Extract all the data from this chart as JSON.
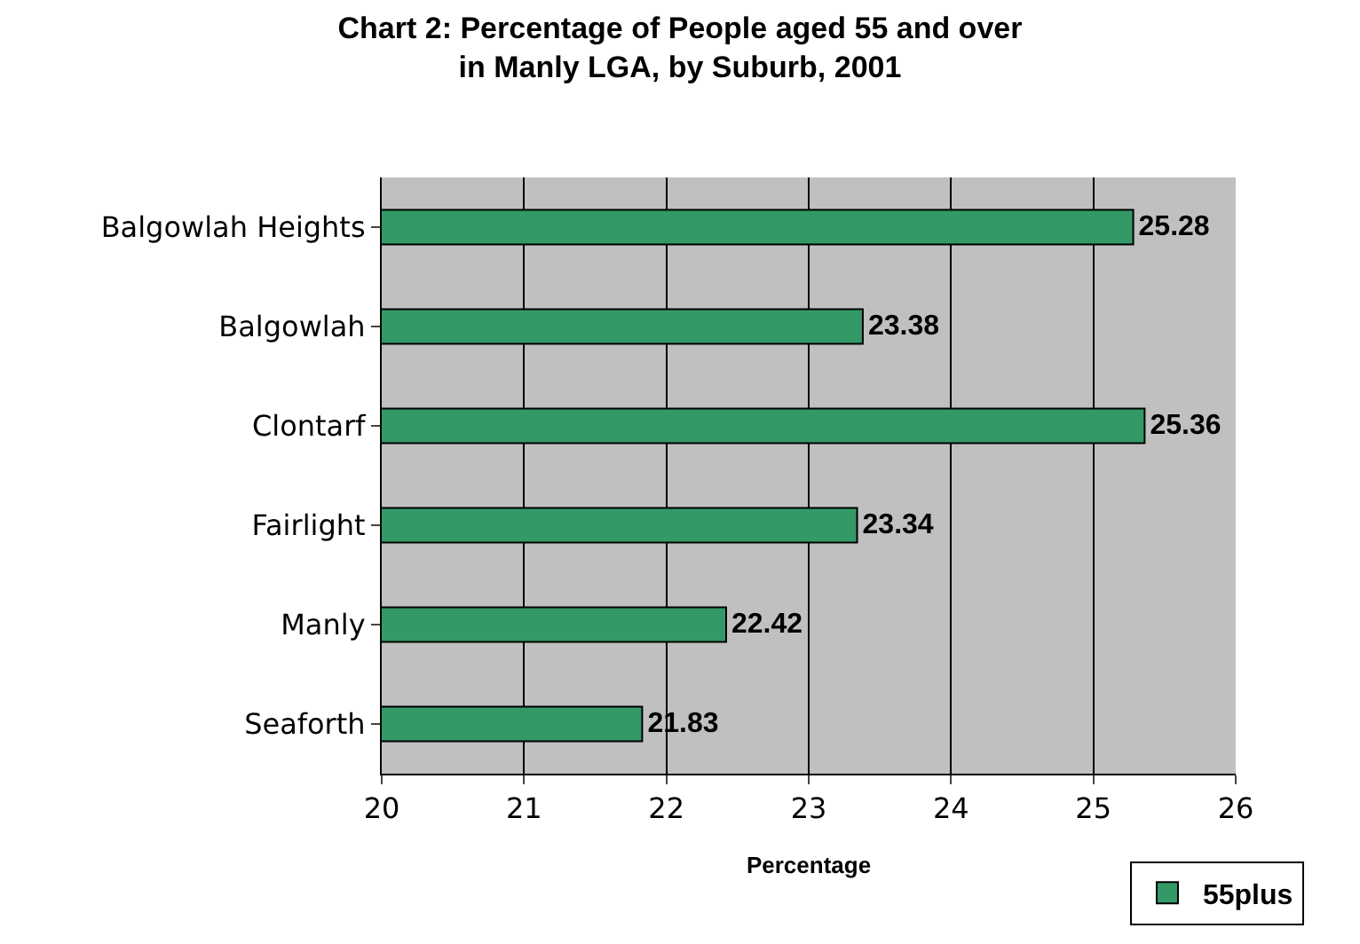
{
  "chart_data": {
    "type": "bar",
    "orientation": "horizontal",
    "title": "Chart 2: Percentage of People aged 55 and over in Manly LGA, by Suburb, 2001",
    "xlabel": "Percentage",
    "categories": [
      "Balgowlah Heights",
      "Balgowlah",
      "Clontarf",
      "Fairlight",
      "Manly",
      "Seaforth"
    ],
    "series": [
      {
        "name": "55plus",
        "color": "#339966",
        "values": [
          25.28,
          23.38,
          25.36,
          23.34,
          22.42,
          21.83
        ]
      }
    ],
    "xlim": [
      20,
      26
    ],
    "xticks": [
      20,
      21,
      22,
      23,
      24,
      25,
      26
    ],
    "grid": "x",
    "legend": "bottom right",
    "data_labels": true
  }
}
